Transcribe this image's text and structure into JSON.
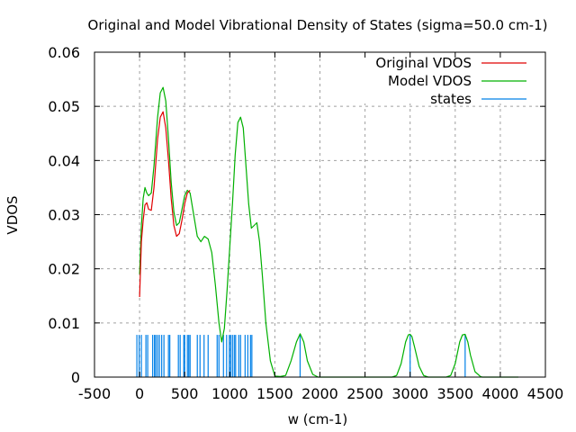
{
  "chart_data": {
    "type": "line",
    "title": "Original and Model Vibrational Density of States (sigma=50.0 cm-1)",
    "xlabel": "w (cm-1)",
    "ylabel": "VDOS",
    "xlim": [
      -500,
      4500
    ],
    "ylim": [
      0,
      0.06
    ],
    "xticks": [
      -500,
      0,
      500,
      1000,
      1500,
      2000,
      2500,
      3000,
      3500,
      4000,
      4500
    ],
    "xtick_labels": [
      "-500",
      "0",
      "500",
      "1000",
      "1500",
      "2000",
      "2500",
      "3000",
      "3500",
      "4000",
      "4500"
    ],
    "yticks": [
      0,
      0.01,
      0.02,
      0.03,
      0.04,
      0.05,
      0.06
    ],
    "ytick_labels": [
      "0",
      "0.01",
      "0.02",
      "0.03",
      "0.04",
      "0.05",
      "0.06"
    ],
    "grid": true,
    "legend_position": "top-right",
    "series": [
      {
        "name": "Original VDOS",
        "color": "#e00000",
        "x": [
          0,
          20,
          40,
          60,
          80,
          100,
          130,
          160,
          200,
          230,
          260,
          290,
          320,
          350,
          380,
          410,
          440,
          470,
          500,
          530,
          560
        ],
        "y": [
          0.0148,
          0.025,
          0.029,
          0.0318,
          0.0322,
          0.031,
          0.0308,
          0.035,
          0.044,
          0.048,
          0.049,
          0.046,
          0.04,
          0.033,
          0.028,
          0.026,
          0.0265,
          0.029,
          0.032,
          0.034,
          0.0345
        ]
      },
      {
        "name": "Model VDOS",
        "color": "#00b000",
        "x": [
          0,
          20,
          40,
          60,
          80,
          100,
          130,
          160,
          200,
          230,
          260,
          290,
          320,
          350,
          380,
          410,
          440,
          470,
          500,
          530,
          560,
          600,
          640,
          680,
          720,
          760,
          800,
          840,
          880,
          910,
          940,
          970,
          1000,
          1030,
          1060,
          1090,
          1120,
          1150,
          1180,
          1210,
          1240,
          1270,
          1300,
          1330,
          1360,
          1400,
          1450,
          1500,
          1560,
          1620,
          1680,
          1740,
          1780,
          1820,
          1860,
          1920,
          1980,
          2050,
          2100,
          2200,
          2500,
          2800,
          2850,
          2900,
          2950,
          2980,
          3000,
          3020,
          3050,
          3100,
          3150,
          3200,
          3400,
          3450,
          3500,
          3550,
          3580,
          3610,
          3640,
          3670,
          3720,
          3780,
          3800,
          4200
        ],
        "y": [
          0.019,
          0.028,
          0.033,
          0.035,
          0.034,
          0.0335,
          0.034,
          0.039,
          0.048,
          0.0525,
          0.0535,
          0.051,
          0.044,
          0.036,
          0.0305,
          0.028,
          0.0285,
          0.031,
          0.0335,
          0.0345,
          0.034,
          0.03,
          0.026,
          0.025,
          0.026,
          0.0255,
          0.023,
          0.017,
          0.01,
          0.0065,
          0.009,
          0.016,
          0.024,
          0.032,
          0.041,
          0.047,
          0.048,
          0.046,
          0.039,
          0.032,
          0.0275,
          0.028,
          0.0285,
          0.025,
          0.019,
          0.01,
          0.003,
          0.0002,
          0.0001,
          0.0003,
          0.003,
          0.0065,
          0.008,
          0.0065,
          0.003,
          0.0005,
          0.0,
          0.0,
          0.0,
          0.0,
          0.0,
          0.0,
          0.0003,
          0.0025,
          0.0065,
          0.0078,
          0.0079,
          0.0075,
          0.0055,
          0.002,
          0.0003,
          0.0,
          0.0,
          0.0003,
          0.0025,
          0.0065,
          0.0078,
          0.0079,
          0.0065,
          0.004,
          0.001,
          0.0001,
          0.0,
          0.0
        ]
      },
      {
        "name": "states",
        "color": "#0080e8",
        "type": "impulse",
        "height": 0.0078,
        "x": [
          -30,
          -5,
          20,
          70,
          90,
          145,
          165,
          180,
          200,
          220,
          245,
          270,
          320,
          335,
          430,
          450,
          490,
          500,
          530,
          545,
          560,
          640,
          670,
          715,
          760,
          860,
          880,
          930,
          965,
          995,
          1010,
          1030,
          1050,
          1065,
          1100,
          1120,
          1170,
          1200,
          1230,
          1245,
          1780,
          3000,
          3610
        ]
      }
    ]
  }
}
